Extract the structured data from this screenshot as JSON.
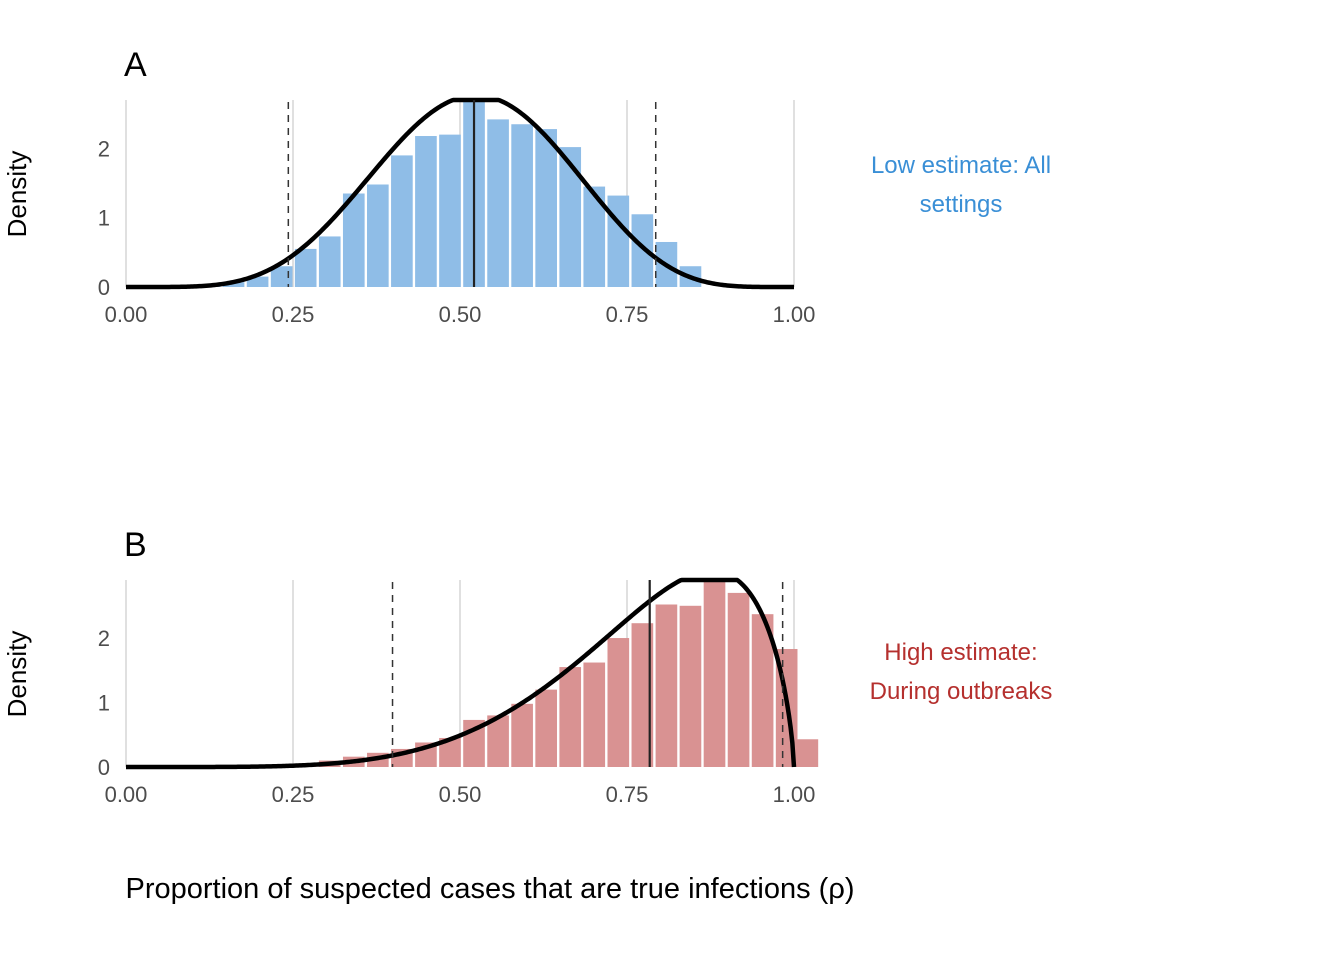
{
  "figure": {
    "xlabel": "Proportion of suspected cases that are true infections (ρ)"
  },
  "chart_data": [
    {
      "type": "bar",
      "panel_label": "A",
      "ylabel": "Density",
      "xlim": [
        0,
        1
      ],
      "ylim": [
        0,
        2.7
      ],
      "x_ticks": [
        0.0,
        0.25,
        0.5,
        0.75,
        1.0
      ],
      "x_tick_labels": [
        "0.00",
        "0.25",
        "0.50",
        "0.75",
        "1.00"
      ],
      "y_ticks": [
        0,
        1,
        2
      ],
      "y_tick_labels": [
        "0",
        "1",
        "2"
      ],
      "grid": "vertical",
      "bar_color": "#8fbde7",
      "bin_width": 0.036,
      "histogram": {
        "bin_centers": [
          0.089,
          0.125,
          0.161,
          0.197,
          0.233,
          0.269,
          0.305,
          0.341,
          0.377,
          0.413,
          0.449,
          0.485,
          0.521,
          0.557,
          0.593,
          0.629,
          0.665,
          0.701,
          0.737,
          0.773,
          0.809,
          0.845
        ],
        "density": [
          0.01,
          0.03,
          0.07,
          0.15,
          0.3,
          0.55,
          0.73,
          1.35,
          1.48,
          1.9,
          2.18,
          2.2,
          2.68,
          2.42,
          2.35,
          2.28,
          2.02,
          1.45,
          1.32,
          1.05,
          0.65,
          0.3
        ]
      },
      "curve": {
        "type": "beta",
        "alpha": 6.5,
        "beta": 6.0,
        "color": "#000000"
      },
      "median_line": 0.521,
      "interval_lines": [
        0.243,
        0.793
      ],
      "annotation": [
        "Low estimate: All",
        "settings"
      ],
      "annotation_color": "#3a8fd6"
    },
    {
      "type": "bar",
      "panel_label": "B",
      "ylabel": "Density",
      "xlim": [
        0,
        1
      ],
      "ylim": [
        0,
        2.9
      ],
      "x_ticks": [
        0.0,
        0.25,
        0.5,
        0.75,
        1.0
      ],
      "x_tick_labels": [
        "0.00",
        "0.25",
        "0.50",
        "0.75",
        "1.00"
      ],
      "y_ticks": [
        0,
        1,
        2
      ],
      "y_tick_labels": [
        "0",
        "1",
        "2"
      ],
      "grid": "vertical",
      "bar_color": "#d99292",
      "bin_width": 0.036,
      "histogram": {
        "bin_centers": [
          0.233,
          0.269,
          0.305,
          0.341,
          0.377,
          0.413,
          0.449,
          0.485,
          0.521,
          0.557,
          0.593,
          0.629,
          0.665,
          0.701,
          0.737,
          0.773,
          0.809,
          0.845,
          0.881,
          0.917,
          0.953,
          0.989,
          1.02
        ],
        "density": [
          0.02,
          0.05,
          0.1,
          0.16,
          0.22,
          0.28,
          0.38,
          0.45,
          0.73,
          0.8,
          0.98,
          1.2,
          1.55,
          1.62,
          2.0,
          2.23,
          2.52,
          2.5,
          2.87,
          2.7,
          2.37,
          1.83,
          0.43
        ]
      },
      "curve": {
        "type": "beta",
        "alpha": 6.0,
        "beta": 1.7,
        "color": "#000000"
      },
      "median_line": 0.784,
      "interval_lines": [
        0.399,
        0.983
      ],
      "annotation": [
        "High estimate:",
        "During outbreaks"
      ],
      "annotation_color": "#b5302e"
    }
  ]
}
